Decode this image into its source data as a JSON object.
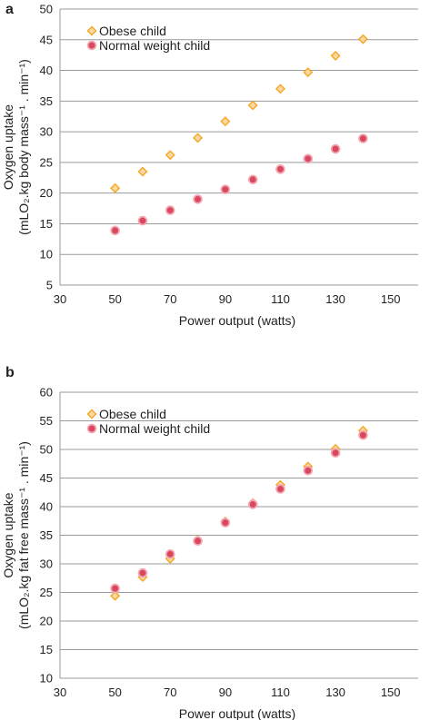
{
  "chart_data": [
    {
      "type": "scatter",
      "panel_label": "a",
      "title": "",
      "xlabel": "Power output (watts)",
      "ylabel_line1": "Oxygen uptake",
      "ylabel_line2": "(mLO₂.kg body mass⁻¹ . min⁻¹)",
      "xlim": [
        30,
        160
      ],
      "ylim": [
        5,
        50
      ],
      "xticks": [
        30,
        50,
        70,
        90,
        110,
        130,
        150
      ],
      "yticks": [
        5,
        10,
        15,
        20,
        25,
        30,
        35,
        40,
        45,
        50
      ],
      "grid": "horizontal",
      "legend": "top-left",
      "series": [
        {
          "name": "Obese child",
          "marker": "diamond",
          "color": "#F5A623",
          "x": [
            50,
            60,
            70,
            80,
            90,
            100,
            110,
            120,
            130,
            140
          ],
          "y": [
            20.8,
            23.5,
            26.2,
            29.0,
            31.7,
            34.3,
            37.0,
            39.7,
            42.4,
            45.1
          ]
        },
        {
          "name": "Normal weight child",
          "marker": "circle",
          "color": "#E8667A",
          "x": [
            50,
            60,
            70,
            80,
            90,
            100,
            110,
            120,
            130,
            140
          ],
          "y": [
            13.9,
            15.5,
            17.2,
            19.0,
            20.6,
            22.2,
            23.9,
            25.6,
            27.2,
            28.9
          ]
        }
      ]
    },
    {
      "type": "scatter",
      "panel_label": "b",
      "title": "",
      "xlabel": "Power output (watts)",
      "ylabel_line1": "Oxygen uptake",
      "ylabel_line2": "(mLO₂.kg fat free mass⁻¹ . min⁻¹)",
      "xlim": [
        30,
        160
      ],
      "ylim": [
        10,
        60
      ],
      "xticks": [
        30,
        50,
        70,
        90,
        110,
        130,
        150
      ],
      "yticks": [
        10,
        15,
        20,
        25,
        30,
        35,
        40,
        45,
        50,
        55,
        60
      ],
      "grid": "horizontal",
      "legend": "top-left",
      "series": [
        {
          "name": "Obese child",
          "marker": "diamond",
          "color": "#F5A623",
          "x": [
            50,
            60,
            70,
            80,
            90,
            100,
            110,
            120,
            130,
            140
          ],
          "y": [
            24.4,
            27.7,
            30.9,
            34.1,
            37.4,
            40.6,
            43.8,
            47.0,
            50.1,
            53.3
          ]
        },
        {
          "name": "Normal weight child",
          "marker": "circle",
          "color": "#E8667A",
          "x": [
            50,
            60,
            70,
            80,
            90,
            100,
            110,
            120,
            130,
            140
          ],
          "y": [
            25.7,
            28.4,
            31.7,
            34.0,
            37.2,
            40.4,
            43.1,
            46.3,
            49.4,
            52.5
          ]
        }
      ]
    }
  ]
}
